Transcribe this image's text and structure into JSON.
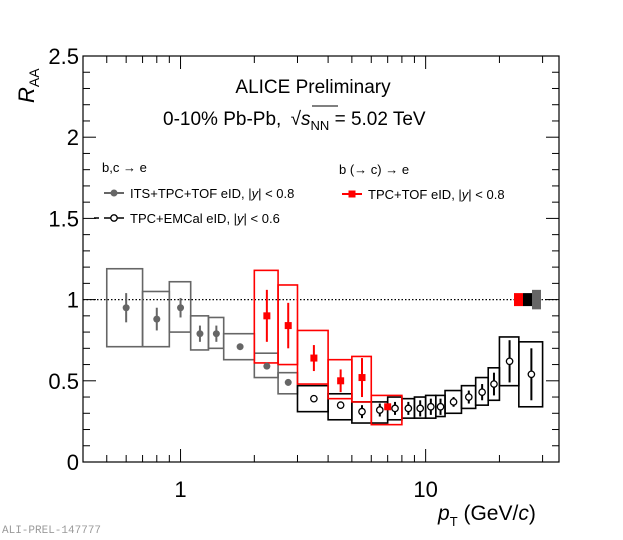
{
  "chart_data": {
    "type": "scatter",
    "title": "ALICE Preliminary",
    "subtitle_prefix": "0-10% Pb-Pb, ",
    "subtitle_sqrt_var": "s",
    "subtitle_sqrt_sub": "NN",
    "subtitle_suffix": " = 5.02 TeV",
    "xlabel_var": "p",
    "xlabel_sub": "T",
    "xlabel_unit_open": " (GeV/",
    "xlabel_unit_var": "c",
    "xlabel_unit_close": ")",
    "ylabel_var": "R",
    "ylabel_sub": "AA",
    "xscale": "log",
    "xlim": [
      0.4,
      35
    ],
    "ylim": [
      0,
      2.5
    ],
    "xticks_labeled": [
      {
        "v": 1,
        "label": "1"
      },
      {
        "v": 10,
        "label": "10"
      }
    ],
    "yticks_labeled": [
      {
        "v": 0,
        "label": "0"
      },
      {
        "v": 0.5,
        "label": "0.5"
      },
      {
        "v": 1,
        "label": "1"
      },
      {
        "v": 1.5,
        "label": "1.5"
      },
      {
        "v": 2,
        "label": "2"
      },
      {
        "v": 2.5,
        "label": "2.5"
      }
    ],
    "reference_line": 1,
    "legend": {
      "group1_title": "b,c → e",
      "group2_title": "b (→ c) → e",
      "entries": [
        {
          "series": 0,
          "pre": "ITS+TPC+TOF eID, |",
          "var": "y",
          "post": "| < 0.8"
        },
        {
          "series": 1,
          "pre": "TPC+EMCal eID, |",
          "var": "y",
          "post": "| < 0.6"
        },
        {
          "series": 2,
          "pre": "TPC+TOF eID, |",
          "var": "y",
          "post": "| < 0.8"
        }
      ]
    },
    "series": [
      {
        "name": "b,c → e ITS+TPC+TOF eID, |y| < 0.8",
        "color": "#666666",
        "marker": "filled-circle",
        "points": [
          {
            "x": 0.6,
            "xlo": 0.5,
            "xhi": 0.7,
            "y": 0.95,
            "stat": 0.09,
            "syshi": 1.19,
            "syslo": 0.71
          },
          {
            "x": 0.8,
            "xlo": 0.7,
            "xhi": 0.9,
            "y": 0.88,
            "stat": 0.07,
            "syshi": 1.05,
            "syslo": 0.71
          },
          {
            "x": 1.0,
            "xlo": 0.9,
            "xhi": 1.1,
            "y": 0.95,
            "stat": 0.06,
            "syshi": 1.11,
            "syslo": 0.8
          },
          {
            "x": 1.2,
            "xlo": 1.1,
            "xhi": 1.3,
            "y": 0.79,
            "stat": 0.05,
            "syshi": 0.9,
            "syslo": 0.69
          },
          {
            "x": 1.4,
            "xlo": 1.3,
            "xhi": 1.5,
            "y": 0.79,
            "stat": 0.05,
            "syshi": 0.89,
            "syslo": 0.7
          },
          {
            "x": 1.75,
            "xlo": 1.5,
            "xhi": 2.0,
            "y": 0.71,
            "stat": 0.02,
            "syshi": 0.79,
            "syslo": 0.63
          },
          {
            "x": 2.25,
            "xlo": 2.0,
            "xhi": 2.5,
            "y": 0.59,
            "stat": 0.02,
            "syshi": 0.67,
            "syslo": 0.52
          },
          {
            "x": 2.75,
            "xlo": 2.5,
            "xhi": 3.0,
            "y": 0.49,
            "stat": 0.02,
            "syshi": 0.55,
            "syslo": 0.42
          }
        ]
      },
      {
        "name": "b,c → e TPC+EMCal eID, |y| < 0.6",
        "color": "#000000",
        "marker": "open-circle",
        "points": [
          {
            "x": 3.5,
            "xlo": 3.0,
            "xhi": 4.0,
            "y": 0.39,
            "stat": 0.02,
            "syshi": 0.47,
            "syslo": 0.31
          },
          {
            "x": 4.5,
            "xlo": 4.0,
            "xhi": 5.0,
            "y": 0.35,
            "stat": 0.02,
            "syshi": 0.42,
            "syslo": 0.26
          },
          {
            "x": 5.5,
            "xlo": 5.0,
            "xhi": 6.0,
            "y": 0.31,
            "stat": 0.04,
            "syshi": 0.37,
            "syslo": 0.24
          },
          {
            "x": 6.5,
            "xlo": 6.0,
            "xhi": 7.0,
            "y": 0.32,
            "stat": 0.04,
            "syshi": 0.37,
            "syslo": 0.24
          },
          {
            "x": 7.5,
            "xlo": 7.0,
            "xhi": 8.0,
            "y": 0.33,
            "stat": 0.04,
            "syshi": 0.4,
            "syslo": 0.26
          },
          {
            "x": 8.5,
            "xlo": 8.0,
            "xhi": 9.0,
            "y": 0.33,
            "stat": 0.04,
            "syshi": 0.39,
            "syslo": 0.27
          },
          {
            "x": 9.5,
            "xlo": 9.0,
            "xhi": 10.0,
            "y": 0.33,
            "stat": 0.05,
            "syshi": 0.4,
            "syslo": 0.27
          },
          {
            "x": 10.5,
            "xlo": 10.0,
            "xhi": 11.0,
            "y": 0.34,
            "stat": 0.05,
            "syshi": 0.41,
            "syslo": 0.27
          },
          {
            "x": 11.5,
            "xlo": 11.0,
            "xhi": 12.0,
            "y": 0.34,
            "stat": 0.05,
            "syshi": 0.41,
            "syslo": 0.28
          },
          {
            "x": 13.0,
            "xlo": 12.0,
            "xhi": 14.0,
            "y": 0.37,
            "stat": 0.03,
            "syshi": 0.44,
            "syslo": 0.3
          },
          {
            "x": 15.0,
            "xlo": 14.0,
            "xhi": 16.0,
            "y": 0.4,
            "stat": 0.04,
            "syshi": 0.47,
            "syslo": 0.33
          },
          {
            "x": 17.0,
            "xlo": 16.0,
            "xhi": 18.0,
            "y": 0.43,
            "stat": 0.05,
            "syshi": 0.52,
            "syslo": 0.35
          },
          {
            "x": 19.0,
            "xlo": 18.0,
            "xhi": 20.0,
            "y": 0.48,
            "stat": 0.07,
            "syshi": 0.58,
            "syslo": 0.38
          },
          {
            "x": 22.0,
            "xlo": 20.0,
            "xhi": 24.0,
            "y": 0.62,
            "stat": 0.13,
            "syshi": 0.77,
            "syslo": 0.47
          },
          {
            "x": 27.0,
            "xlo": 24.0,
            "xhi": 30.0,
            "y": 0.54,
            "stat": 0.16,
            "syshi": 0.74,
            "syslo": 0.34
          }
        ]
      },
      {
        "name": "b (→ c) → e TPC+TOF eID, |y| < 0.8",
        "color": "#ff0000",
        "marker": "filled-square",
        "points": [
          {
            "x": 2.25,
            "xlo": 2.0,
            "xhi": 2.5,
            "y": 0.9,
            "stat": 0.16,
            "syshi": 1.18,
            "syslo": 0.61
          },
          {
            "x": 2.75,
            "xlo": 2.5,
            "xhi": 3.0,
            "y": 0.84,
            "stat": 0.14,
            "syshi": 1.09,
            "syslo": 0.6
          },
          {
            "x": 3.5,
            "xlo": 3.0,
            "xhi": 4.0,
            "y": 0.64,
            "stat": 0.08,
            "syshi": 0.81,
            "syslo": 0.48
          },
          {
            "x": 4.5,
            "xlo": 4.0,
            "xhi": 5.0,
            "y": 0.5,
            "stat": 0.07,
            "syshi": 0.63,
            "syslo": 0.39
          },
          {
            "x": 5.5,
            "xlo": 5.0,
            "xhi": 6.0,
            "y": 0.52,
            "stat": 0.12,
            "syshi": 0.65,
            "syslo": 0.37
          },
          {
            "x": 7.0,
            "xlo": 6.0,
            "xhi": 8.0,
            "y": 0.34,
            "stat": 0.02,
            "syshi": 0.41,
            "syslo": 0.23
          }
        ]
      }
    ],
    "normalization_boxes": [
      {
        "color": "#ff0000",
        "hi": 1.04,
        "lo": 0.96
      },
      {
        "color": "#000000",
        "hi": 1.04,
        "lo": 0.96
      },
      {
        "color": "#666666",
        "hi": 1.06,
        "lo": 0.94
      }
    ]
  },
  "footer": {
    "figure_id": "ALI-PREL-147777"
  }
}
